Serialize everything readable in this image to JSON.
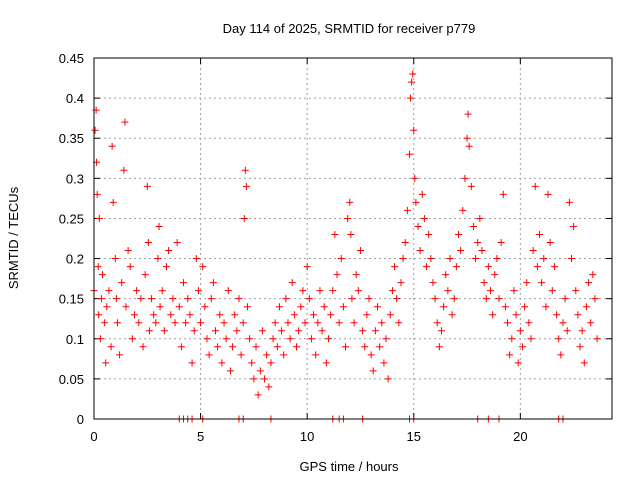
{
  "chart_data": {
    "type": "scatter",
    "title": "Day 114 of 2025, SRMTID for receiver p779",
    "xlabel": "GPS time / hours",
    "ylabel": "SRMTID / TECUs",
    "xlim": [
      0,
      24.3
    ],
    "ylim": [
      0,
      0.45
    ],
    "xticks": [
      0,
      5,
      10,
      15,
      20
    ],
    "xtick_labels": [
      "0",
      "5",
      "10",
      "15",
      "20"
    ],
    "yticks": [
      0,
      0.05,
      0.1,
      0.15,
      0.2,
      0.25,
      0.3,
      0.35,
      0.4,
      0.45
    ],
    "ytick_labels": [
      "0",
      "0.05",
      "0.1",
      "0.15",
      "0.2",
      "0.25",
      "0.3",
      "0.35",
      "0.4",
      "0.45"
    ],
    "grid": true,
    "marker": "+",
    "series_color": "#ff0000",
    "series": [
      {
        "name": "SRMTID",
        "points": [
          [
            0.0,
            0.16
          ],
          [
            0.05,
            0.36
          ],
          [
            0.1,
            0.385
          ],
          [
            0.12,
            0.32
          ],
          [
            0.15,
            0.28
          ],
          [
            0.2,
            0.19
          ],
          [
            0.22,
            0.13
          ],
          [
            0.25,
            0.25
          ],
          [
            0.3,
            0.1
          ],
          [
            0.35,
            0.15
          ],
          [
            0.4,
            0.18
          ],
          [
            0.5,
            0.12
          ],
          [
            0.55,
            0.07
          ],
          [
            0.6,
            0.14
          ],
          [
            0.7,
            0.16
          ],
          [
            0.8,
            0.09
          ],
          [
            0.85,
            0.34
          ],
          [
            0.9,
            0.27
          ],
          [
            1.0,
            0.2
          ],
          [
            1.05,
            0.15
          ],
          [
            1.1,
            0.12
          ],
          [
            1.2,
            0.08
          ],
          [
            1.3,
            0.17
          ],
          [
            1.4,
            0.31
          ],
          [
            1.45,
            0.37
          ],
          [
            1.5,
            0.14
          ],
          [
            1.6,
            0.21
          ],
          [
            1.7,
            0.19
          ],
          [
            1.8,
            0.1
          ],
          [
            1.9,
            0.13
          ],
          [
            2.0,
            0.16
          ],
          [
            2.1,
            0.12
          ],
          [
            2.2,
            0.15
          ],
          [
            2.3,
            0.09
          ],
          [
            2.4,
            0.18
          ],
          [
            2.5,
            0.29
          ],
          [
            2.55,
            0.22
          ],
          [
            2.6,
            0.11
          ],
          [
            2.7,
            0.15
          ],
          [
            2.8,
            0.13
          ],
          [
            2.9,
            0.12
          ],
          [
            3.0,
            0.2
          ],
          [
            3.05,
            0.24
          ],
          [
            3.1,
            0.14
          ],
          [
            3.2,
            0.16
          ],
          [
            3.3,
            0.11
          ],
          [
            3.4,
            0.19
          ],
          [
            3.5,
            0.21
          ],
          [
            3.6,
            0.13
          ],
          [
            3.7,
            0.15
          ],
          [
            3.8,
            0.12
          ],
          [
            3.9,
            0.22
          ],
          [
            4.0,
            0.14
          ],
          [
            4.1,
            0.09
          ],
          [
            4.2,
            0.17
          ],
          [
            4.3,
            0.12
          ],
          [
            4.4,
            0.15
          ],
          [
            4.5,
            0.13
          ],
          [
            4.6,
            0.07
          ],
          [
            4.7,
            0.11
          ],
          [
            4.8,
            0.2
          ],
          [
            4.9,
            0.16
          ],
          [
            5.0,
            0.12
          ],
          [
            5.1,
            0.19
          ],
          [
            5.2,
            0.14
          ],
          [
            5.3,
            0.1
          ],
          [
            5.4,
            0.08
          ],
          [
            5.5,
            0.15
          ],
          [
            5.6,
            0.17
          ],
          [
            5.7,
            0.11
          ],
          [
            5.8,
            0.09
          ],
          [
            5.9,
            0.13
          ],
          [
            6.0,
            0.07
          ],
          [
            6.1,
            0.12
          ],
          [
            6.2,
            0.1
          ],
          [
            6.3,
            0.16
          ],
          [
            6.4,
            0.06
          ],
          [
            6.5,
            0.09
          ],
          [
            6.6,
            0.13
          ],
          [
            6.7,
            0.11
          ],
          [
            6.8,
            0.15
          ],
          [
            6.9,
            0.08
          ],
          [
            7.0,
            0.12
          ],
          [
            7.05,
            0.25
          ],
          [
            7.1,
            0.31
          ],
          [
            7.15,
            0.29
          ],
          [
            7.2,
            0.14
          ],
          [
            7.3,
            0.1
          ],
          [
            7.4,
            0.07
          ],
          [
            7.5,
            0.05
          ],
          [
            7.6,
            0.09
          ],
          [
            7.7,
            0.03
          ],
          [
            7.8,
            0.06
          ],
          [
            7.9,
            0.11
          ],
          [
            8.0,
            0.05
          ],
          [
            8.1,
            0.08
          ],
          [
            8.2,
            0.04
          ],
          [
            8.3,
            0.07
          ],
          [
            8.4,
            0.1
          ],
          [
            8.5,
            0.12
          ],
          [
            8.6,
            0.09
          ],
          [
            8.7,
            0.14
          ],
          [
            8.8,
            0.11
          ],
          [
            8.9,
            0.08
          ],
          [
            9.0,
            0.15
          ],
          [
            9.1,
            0.12
          ],
          [
            9.2,
            0.1
          ],
          [
            9.3,
            0.17
          ],
          [
            9.4,
            0.13
          ],
          [
            9.5,
            0.09
          ],
          [
            9.6,
            0.11
          ],
          [
            9.7,
            0.14
          ],
          [
            9.8,
            0.16
          ],
          [
            9.9,
            0.12
          ],
          [
            10.0,
            0.19
          ],
          [
            10.1,
            0.15
          ],
          [
            10.2,
            0.1
          ],
          [
            10.3,
            0.13
          ],
          [
            10.4,
            0.08
          ],
          [
            10.5,
            0.12
          ],
          [
            10.6,
            0.16
          ],
          [
            10.7,
            0.11
          ],
          [
            10.8,
            0.14
          ],
          [
            10.9,
            0.07
          ],
          [
            11.0,
            0.1
          ],
          [
            11.1,
            0.13
          ],
          [
            11.2,
            0.16
          ],
          [
            11.3,
            0.23
          ],
          [
            11.4,
            0.18
          ],
          [
            11.5,
            0.12
          ],
          [
            11.6,
            0.2
          ],
          [
            11.7,
            0.14
          ],
          [
            11.8,
            0.09
          ],
          [
            11.9,
            0.25
          ],
          [
            12.0,
            0.27
          ],
          [
            12.05,
            0.23
          ],
          [
            12.1,
            0.15
          ],
          [
            12.2,
            0.12
          ],
          [
            12.3,
            0.18
          ],
          [
            12.4,
            0.16
          ],
          [
            12.5,
            0.21
          ],
          [
            12.6,
            0.11
          ],
          [
            12.7,
            0.09
          ],
          [
            12.8,
            0.13
          ],
          [
            12.9,
            0.15
          ],
          [
            13.0,
            0.08
          ],
          [
            13.1,
            0.06
          ],
          [
            13.2,
            0.11
          ],
          [
            13.3,
            0.14
          ],
          [
            13.4,
            0.09
          ],
          [
            13.5,
            0.12
          ],
          [
            13.6,
            0.07
          ],
          [
            13.7,
            0.1
          ],
          [
            13.8,
            0.05
          ],
          [
            13.9,
            0.13
          ],
          [
            14.0,
            0.16
          ],
          [
            14.1,
            0.19
          ],
          [
            14.2,
            0.15
          ],
          [
            14.3,
            0.12
          ],
          [
            14.4,
            0.17
          ],
          [
            14.5,
            0.2
          ],
          [
            14.6,
            0.22
          ],
          [
            14.7,
            0.26
          ],
          [
            14.8,
            0.33
          ],
          [
            14.85,
            0.4
          ],
          [
            14.9,
            0.42
          ],
          [
            14.95,
            0.43
          ],
          [
            15.0,
            0.36
          ],
          [
            15.05,
            0.3
          ],
          [
            15.1,
            0.27
          ],
          [
            15.2,
            0.24
          ],
          [
            15.3,
            0.21
          ],
          [
            15.4,
            0.28
          ],
          [
            15.5,
            0.25
          ],
          [
            15.6,
            0.19
          ],
          [
            15.7,
            0.23
          ],
          [
            15.8,
            0.2
          ],
          [
            15.9,
            0.17
          ],
          [
            16.0,
            0.15
          ],
          [
            16.1,
            0.12
          ],
          [
            16.2,
            0.09
          ],
          [
            16.3,
            0.11
          ],
          [
            16.4,
            0.14
          ],
          [
            16.5,
            0.18
          ],
          [
            16.6,
            0.16
          ],
          [
            16.7,
            0.2
          ],
          [
            16.8,
            0.13
          ],
          [
            16.9,
            0.15
          ],
          [
            17.0,
            0.19
          ],
          [
            17.1,
            0.23
          ],
          [
            17.2,
            0.21
          ],
          [
            17.3,
            0.26
          ],
          [
            17.4,
            0.3
          ],
          [
            17.5,
            0.35
          ],
          [
            17.55,
            0.38
          ],
          [
            17.6,
            0.34
          ],
          [
            17.7,
            0.29
          ],
          [
            17.8,
            0.24
          ],
          [
            17.9,
            0.2
          ],
          [
            18.0,
            0.22
          ],
          [
            18.1,
            0.25
          ],
          [
            18.2,
            0.21
          ],
          [
            18.3,
            0.17
          ],
          [
            18.4,
            0.15
          ],
          [
            18.5,
            0.19
          ],
          [
            18.6,
            0.16
          ],
          [
            18.7,
            0.13
          ],
          [
            18.8,
            0.18
          ],
          [
            18.9,
            0.2
          ],
          [
            19.0,
            0.15
          ],
          [
            19.1,
            0.22
          ],
          [
            19.2,
            0.28
          ],
          [
            19.3,
            0.14
          ],
          [
            19.4,
            0.12
          ],
          [
            19.5,
            0.08
          ],
          [
            19.6,
            0.1
          ],
          [
            19.7,
            0.16
          ],
          [
            19.8,
            0.13
          ],
          [
            19.9,
            0.07
          ],
          [
            20.0,
            0.11
          ],
          [
            20.1,
            0.09
          ],
          [
            20.2,
            0.14
          ],
          [
            20.3,
            0.17
          ],
          [
            20.4,
            0.12
          ],
          [
            20.5,
            0.1
          ],
          [
            20.6,
            0.21
          ],
          [
            20.7,
            0.29
          ],
          [
            20.8,
            0.19
          ],
          [
            20.9,
            0.23
          ],
          [
            21.0,
            0.17
          ],
          [
            21.1,
            0.2
          ],
          [
            21.2,
            0.14
          ],
          [
            21.3,
            0.28
          ],
          [
            21.4,
            0.22
          ],
          [
            21.5,
            0.16
          ],
          [
            21.6,
            0.19
          ],
          [
            21.7,
            0.13
          ],
          [
            21.8,
            0.1
          ],
          [
            21.9,
            0.08
          ],
          [
            22.0,
            0.12
          ],
          [
            22.1,
            0.15
          ],
          [
            22.2,
            0.11
          ],
          [
            22.3,
            0.27
          ],
          [
            22.4,
            0.2
          ],
          [
            22.5,
            0.24
          ],
          [
            22.6,
            0.16
          ],
          [
            22.7,
            0.13
          ],
          [
            22.8,
            0.09
          ],
          [
            22.9,
            0.11
          ],
          [
            23.0,
            0.07
          ],
          [
            23.1,
            0.14
          ],
          [
            23.2,
            0.17
          ],
          [
            23.3,
            0.12
          ],
          [
            23.4,
            0.18
          ],
          [
            23.5,
            0.15
          ],
          [
            23.6,
            0.1
          ],
          [
            4.0,
            0.0
          ],
          [
            4.2,
            0.0
          ],
          [
            4.4,
            0.0
          ],
          [
            4.6,
            0.0
          ],
          [
            5.1,
            0.0
          ],
          [
            6.8,
            0.0
          ],
          [
            7.0,
            0.0
          ],
          [
            8.3,
            0.0
          ],
          [
            11.2,
            0.0
          ],
          [
            11.5,
            0.0
          ],
          [
            11.7,
            0.0
          ],
          [
            12.6,
            0.0
          ],
          [
            14.8,
            0.0
          ],
          [
            15.0,
            0.0
          ],
          [
            18.0,
            0.0
          ],
          [
            18.5,
            0.0
          ],
          [
            19.0,
            0.0
          ],
          [
            21.8,
            0.0
          ],
          [
            22.0,
            0.0
          ]
        ]
      }
    ]
  }
}
